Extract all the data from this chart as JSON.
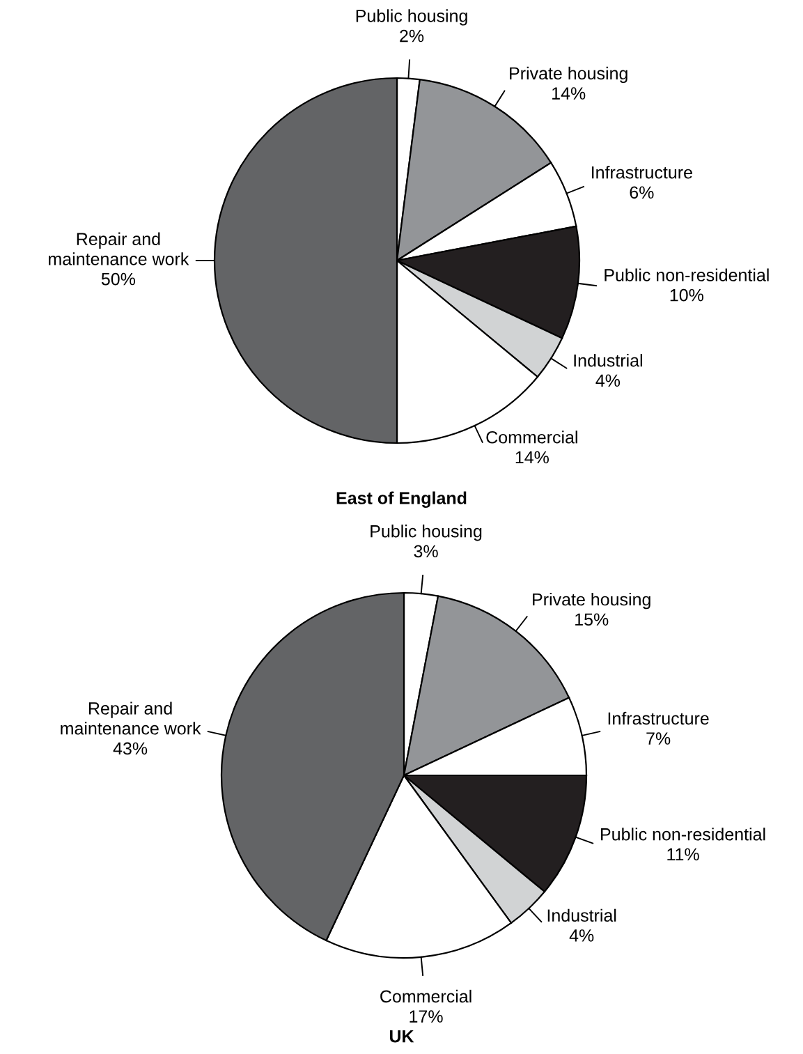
{
  "chart_data": [
    {
      "type": "pie",
      "title": "East of England",
      "categories": [
        "Public housing",
        "Private housing",
        "Infrastructure",
        "Public non-residential",
        "Industrial",
        "Commercial",
        "Repair and maintenance work"
      ],
      "values": [
        2,
        14,
        6,
        10,
        4,
        14,
        50
      ],
      "value_labels": [
        "2%",
        "14%",
        "6%",
        "10%",
        "4%",
        "14%",
        "50%"
      ],
      "colors": [
        "#ffffff",
        "#939598",
        "#ffffff",
        "#231f20",
        "#d1d3d4",
        "#ffffff",
        "#636466"
      ]
    },
    {
      "type": "pie",
      "title": "UK",
      "categories": [
        "Public housing",
        "Private housing",
        "Infrastructure",
        "Public non-residential",
        "Industrial",
        "Commercial",
        "Repair and maintenance work"
      ],
      "values": [
        3,
        15,
        7,
        11,
        4,
        17,
        43
      ],
      "value_labels": [
        "3%",
        "15%",
        "7%",
        "11%",
        "4%",
        "17%",
        "43%"
      ],
      "colors": [
        "#ffffff",
        "#939598",
        "#ffffff",
        "#231f20",
        "#d1d3d4",
        "#ffffff",
        "#636466"
      ]
    }
  ]
}
